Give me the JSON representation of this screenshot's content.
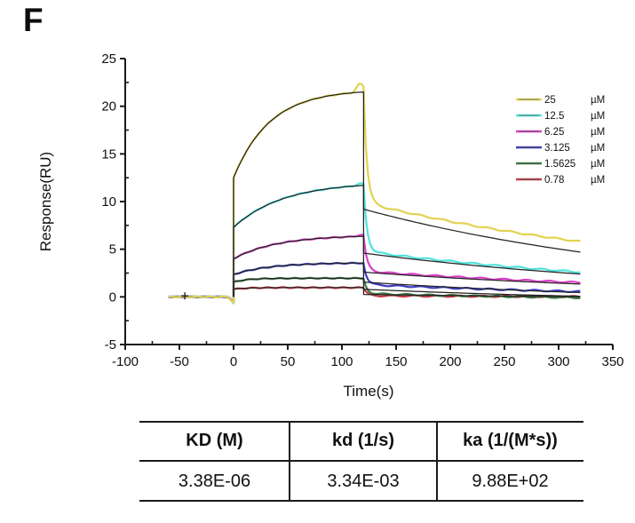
{
  "panel_label": "F",
  "chart": {
    "x_axis": {
      "title": "Time(s)",
      "ticks": [
        -100,
        -50,
        0,
        50,
        100,
        150,
        200,
        250,
        300,
        350
      ]
    },
    "y_axis": {
      "title": "Response(RU)",
      "ticks": [
        -5,
        0,
        5,
        10,
        15,
        20,
        25
      ]
    },
    "legend": {
      "unit": "µM",
      "entries": [
        "25",
        "12.5",
        "6.25",
        "3.125",
        "1.5625",
        "0.78"
      ]
    }
  },
  "chart_data": {
    "type": "line",
    "title": "",
    "xlabel": "Time(s)",
    "ylabel": "Response(RU)",
    "xlim": [
      -100,
      350
    ],
    "ylim": [
      -5,
      25
    ],
    "grid": false,
    "legend_position": "upper right",
    "description": "SPR sensorgram: baseline -60 to 0 s at 0 RU, association phase 0-120 s, dissociation phase 120-320 s. Colored traces = measured data, black traces = kinetic fit.",
    "phases": {
      "baseline_start_s": -60,
      "association_start_s": 0,
      "dissociation_start_s": 120,
      "end_s": 320
    },
    "kd_per_s": 0.00334,
    "series": [
      {
        "name": "0.78 µM",
        "concentration_uM": 0.78,
        "color": "#c63a48",
        "assoc_jump_RU": 0.8,
        "assoc_end_RU": 0.97,
        "kobs": 0.09,
        "fit_dissoc_start_RU": 0.25,
        "fit_dissoc_end_RU": 0.02,
        "data_dissoc_start_RU": 0.12,
        "data_dissoc_end_RU": 0.02,
        "transient_RU": 0.8,
        "end_spike_RU": 0.0
      },
      {
        "name": "1.5625 µM",
        "concentration_uM": 1.5625,
        "color": "#3d7a40",
        "assoc_jump_RU": 1.55,
        "assoc_end_RU": 1.95,
        "kobs": 0.08,
        "fit_dissoc_start_RU": 0.8,
        "fit_dissoc_end_RU": 0.06,
        "data_dissoc_start_RU": 0.35,
        "data_dissoc_end_RU": -0.08,
        "transient_RU": 1.5,
        "end_spike_RU": 0.0
      },
      {
        "name": "3.125 µM",
        "concentration_uM": 3.125,
        "color": "#3c3cc0",
        "assoc_jump_RU": 2.35,
        "assoc_end_RU": 3.55,
        "kobs": 0.03,
        "fit_dissoc_start_RU": 1.55,
        "fit_dissoc_end_RU": 0.45,
        "data_dissoc_start_RU": 1.3,
        "data_dissoc_end_RU": 0.55,
        "transient_RU": 2.2,
        "end_spike_RU": 0.0
      },
      {
        "name": "6.25 µM",
        "concentration_uM": 6.25,
        "color": "#da3fc8",
        "assoc_jump_RU": 4.0,
        "assoc_end_RU": 6.35,
        "kobs": 0.025,
        "fit_dissoc_start_RU": 2.6,
        "fit_dissoc_end_RU": 1.35,
        "data_dissoc_start_RU": 2.7,
        "data_dissoc_end_RU": 1.5,
        "transient_RU": 3.6,
        "end_spike_RU": 0.15
      },
      {
        "name": "12.5 µM",
        "concentration_uM": 12.5,
        "color": "#4fe3dc",
        "assoc_jump_RU": 7.3,
        "assoc_end_RU": 11.7,
        "kobs": 0.022,
        "fit_dissoc_start_RU": 4.6,
        "fit_dissoc_end_RU": 2.4,
        "data_dissoc_start_RU": 4.8,
        "data_dissoc_end_RU": 2.6,
        "transient_RU": 6.9,
        "end_spike_RU": 0.2
      },
      {
        "name": "25 µM",
        "concentration_uM": 25,
        "color": "#e2d24f",
        "assoc_jump_RU": 12.5,
        "assoc_end_RU": 21.5,
        "kobs": 0.03,
        "fit_dissoc_start_RU": 9.2,
        "fit_dissoc_end_RU": 4.7,
        "data_dissoc_start_RU": 9.9,
        "data_dissoc_end_RU": 5.8,
        "transient_RU": 12.0,
        "end_spike_RU": 0.9
      }
    ],
    "fit_color": "#222222",
    "axis_color": "#1a1a1a"
  },
  "table": {
    "headers": [
      "KD (M)",
      "kd (1/s)",
      "ka (1/(M*s))"
    ],
    "values": [
      "3.38E-06",
      "3.34E-03",
      "9.88E+02"
    ]
  }
}
